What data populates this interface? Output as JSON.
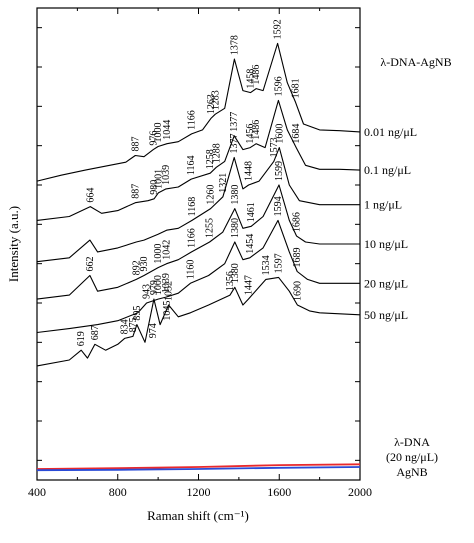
{
  "chart_data": {
    "type": "line",
    "xlabel": "Raman shift (cm⁻¹)",
    "ylabel": "Intensity (a.u.)",
    "xlim": [
      400,
      2000
    ],
    "x_ticks": [
      "400",
      "800",
      "1200",
      "1600",
      "2000"
    ],
    "y_tick_labels": false,
    "grid": false,
    "legend_title": "λ-DNA-AgNB",
    "series": [
      {
        "name": "0.01 ng/μL",
        "color": "#000000",
        "points": [
          [
            400,
            0.6
          ],
          [
            520,
            0.75
          ],
          [
            640,
            0.88
          ],
          [
            760,
            1.0
          ],
          [
            840,
            1.08
          ],
          [
            887,
            1.25
          ],
          [
            930,
            1.22
          ],
          [
            976,
            1.4
          ],
          [
            1000,
            1.48
          ],
          [
            1044,
            1.55
          ],
          [
            1100,
            1.6
          ],
          [
            1166,
            1.8
          ],
          [
            1220,
            1.9
          ],
          [
            1263,
            2.2
          ],
          [
            1283,
            2.3
          ],
          [
            1330,
            2.45
          ],
          [
            1378,
            3.7
          ],
          [
            1420,
            2.9
          ],
          [
            1458,
            2.85
          ],
          [
            1486,
            2.95
          ],
          [
            1520,
            2.9
          ],
          [
            1592,
            4.1
          ],
          [
            1640,
            3.1
          ],
          [
            1681,
            2.6
          ],
          [
            1720,
            2.05
          ],
          [
            1800,
            1.9
          ],
          [
            1900,
            1.88
          ],
          [
            2000,
            1.85
          ]
        ],
        "peaks": [
          "887",
          "976",
          "1000",
          "1044",
          "1166",
          "1263",
          "1283",
          "1378",
          "1458",
          "1486",
          "1592",
          "1681"
        ]
      },
      {
        "name": "0.1 ng/μL",
        "color": "#000000",
        "points": [
          [
            400,
            -0.4
          ],
          [
            560,
            -0.3
          ],
          [
            664,
            -0.05
          ],
          [
            720,
            -0.22
          ],
          [
            800,
            -0.15
          ],
          [
            887,
            0.05
          ],
          [
            950,
            0.1
          ],
          [
            980,
            0.15
          ],
          [
            1001,
            0.3
          ],
          [
            1039,
            0.4
          ],
          [
            1100,
            0.45
          ],
          [
            1164,
            0.65
          ],
          [
            1258,
            0.8
          ],
          [
            1288,
            0.95
          ],
          [
            1330,
            1.1
          ],
          [
            1377,
            1.75
          ],
          [
            1420,
            1.4
          ],
          [
            1456,
            1.45
          ],
          [
            1486,
            1.55
          ],
          [
            1530,
            1.45
          ],
          [
            1596,
            2.65
          ],
          [
            1640,
            1.9
          ],
          [
            1684,
            1.45
          ],
          [
            1730,
            1.0
          ],
          [
            1800,
            0.9
          ],
          [
            1900,
            0.9
          ],
          [
            2000,
            0.88
          ]
        ],
        "peaks": [
          "664",
          "887",
          "980",
          "1001",
          "1039",
          "1164",
          "1258",
          "1288",
          "1377",
          "1456",
          "1486",
          "1596",
          "1684"
        ]
      },
      {
        "name": "1 ng/μL",
        "color": "#000000",
        "points": [
          [
            400,
            -1.45
          ],
          [
            560,
            -1.35
          ],
          [
            662,
            -0.9
          ],
          [
            700,
            -1.2
          ],
          [
            800,
            -1.1
          ],
          [
            892,
            -0.95
          ],
          [
            930,
            -0.9
          ],
          [
            1000,
            -0.75
          ],
          [
            1042,
            -0.65
          ],
          [
            1100,
            -0.6
          ],
          [
            1168,
            -0.4
          ],
          [
            1260,
            -0.1
          ],
          [
            1321,
            0.2
          ],
          [
            1377,
            1.2
          ],
          [
            1420,
            0.4
          ],
          [
            1448,
            0.5
          ],
          [
            1500,
            0.6
          ],
          [
            1573,
            1.1
          ],
          [
            1600,
            1.45
          ],
          [
            1650,
            0.5
          ],
          [
            1700,
            0.1
          ],
          [
            1800,
            0.0
          ],
          [
            1900,
            0.0
          ],
          [
            2000,
            0.0
          ]
        ],
        "peaks": [
          "1168",
          "1260",
          "1321",
          "1377",
          "1448",
          "1573",
          "1600"
        ]
      },
      {
        "name": "10 ng/μL",
        "color": "#000000",
        "points": [
          [
            400,
            -2.4
          ],
          [
            560,
            -2.3
          ],
          [
            662,
            -1.8
          ],
          [
            700,
            -2.2
          ],
          [
            800,
            -2.1
          ],
          [
            892,
            -1.9
          ],
          [
            930,
            -1.8
          ],
          [
            1000,
            -1.6
          ],
          [
            1042,
            -1.5
          ],
          [
            1100,
            -1.4
          ],
          [
            1166,
            -1.2
          ],
          [
            1255,
            -0.95
          ],
          [
            1320,
            -0.7
          ],
          [
            1380,
            -0.1
          ],
          [
            1420,
            -0.6
          ],
          [
            1461,
            -0.55
          ],
          [
            1520,
            -0.3
          ],
          [
            1599,
            0.5
          ],
          [
            1650,
            -0.4
          ],
          [
            1686,
            -0.8
          ],
          [
            1730,
            -0.95
          ],
          [
            1800,
            -1.0
          ],
          [
            2000,
            -1.0
          ]
        ],
        "peaks": [
          "662",
          "892",
          "930",
          "1000",
          "1042",
          "1166",
          "1255",
          "1380",
          "1461",
          "1599",
          "1686"
        ]
      },
      {
        "name": "20 ng/μL",
        "color": "#000000",
        "points": [
          [
            400,
            -3.25
          ],
          [
            560,
            -3.15
          ],
          [
            700,
            -3.05
          ],
          [
            800,
            -2.95
          ],
          [
            900,
            -2.75
          ],
          [
            943,
            -2.5
          ],
          [
            1000,
            -2.4
          ],
          [
            1039,
            -2.35
          ],
          [
            1100,
            -2.25
          ],
          [
            1160,
            -2.0
          ],
          [
            1250,
            -1.8
          ],
          [
            1330,
            -1.5
          ],
          [
            1380,
            -0.95
          ],
          [
            1420,
            -1.4
          ],
          [
            1454,
            -1.35
          ],
          [
            1520,
            -1.1
          ],
          [
            1594,
            -0.4
          ],
          [
            1650,
            -1.2
          ],
          [
            1689,
            -1.7
          ],
          [
            1740,
            -1.9
          ],
          [
            1800,
            -2.0
          ],
          [
            2000,
            -2.0
          ]
        ],
        "peaks": [
          "943",
          "1000",
          "1039",
          "1160",
          "1380",
          "1454",
          "1594",
          "1689"
        ]
      },
      {
        "name": "50 ng/μL",
        "color": "#000000",
        "points": [
          [
            400,
            -4.1
          ],
          [
            560,
            -3.95
          ],
          [
            619,
            -3.7
          ],
          [
            650,
            -3.9
          ],
          [
            687,
            -3.55
          ],
          [
            740,
            -3.7
          ],
          [
            800,
            -3.55
          ],
          [
            834,
            -3.4
          ],
          [
            875,
            -3.35
          ],
          [
            895,
            -3.05
          ],
          [
            935,
            -3.5
          ],
          [
            979,
            -2.4
          ],
          [
            1010,
            -3.05
          ],
          [
            1052,
            -2.55
          ],
          [
            1100,
            -2.85
          ],
          [
            1160,
            -2.75
          ],
          [
            1250,
            -2.55
          ],
          [
            1356,
            -2.3
          ],
          [
            1380,
            -2.1
          ],
          [
            1420,
            -2.55
          ],
          [
            1447,
            -2.4
          ],
          [
            1534,
            -1.9
          ],
          [
            1597,
            -1.85
          ],
          [
            1650,
            -2.2
          ],
          [
            1690,
            -2.55
          ],
          [
            1750,
            -2.7
          ],
          [
            1800,
            -2.75
          ],
          [
            2000,
            -2.8
          ]
        ],
        "peaks": [
          "619",
          "687",
          "834",
          "875",
          "895",
          "979",
          "1052",
          "1160",
          "1356",
          "1380",
          "1447",
          "1534",
          "1597",
          "1690"
        ]
      },
      {
        "name": "λ-DNA (20 ng/μL)",
        "color": "#e8292d",
        "points": [
          [
            400,
            -6.72
          ],
          [
            800,
            -6.7
          ],
          [
            1200,
            -6.67
          ],
          [
            1600,
            -6.62
          ],
          [
            2000,
            -6.6
          ]
        ]
      },
      {
        "name": "AgNB",
        "color": "#2a4bd7",
        "points": [
          [
            400,
            -6.75
          ],
          [
            800,
            -6.74
          ],
          [
            1200,
            -6.72
          ],
          [
            1600,
            -6.69
          ],
          [
            2000,
            -6.67
          ]
        ]
      }
    ],
    "peak_labels": [
      {
        "text": "1378",
        "x": 1378,
        "y": 3.7
      },
      {
        "text": "1592",
        "x": 1592,
        "y": 4.1
      },
      {
        "text": "1458",
        "x": 1458,
        "y": 2.85
      },
      {
        "text": "1486",
        "x": 1486,
        "y": 2.95
      },
      {
        "text": "1681",
        "x": 1681,
        "y": 2.6
      },
      {
        "text": "1263",
        "x": 1263,
        "y": 2.2
      },
      {
        "text": "1283",
        "x": 1283,
        "y": 2.3
      },
      {
        "text": "1166",
        "x": 1166,
        "y": 1.8
      },
      {
        "text": "887",
        "x": 887,
        "y": 1.25
      },
      {
        "text": "976",
        "x": 976,
        "y": 1.4
      },
      {
        "text": "1000",
        "x": 1000,
        "y": 1.48
      },
      {
        "text": "1044",
        "x": 1044,
        "y": 1.55
      },
      {
        "text": "1377",
        "x": 1377,
        "y": 1.75
      },
      {
        "text": "1596",
        "x": 1596,
        "y": 2.65
      },
      {
        "text": "1456",
        "x": 1456,
        "y": 1.45
      },
      {
        "text": "1486",
        "x": 1486,
        "y": 1.55
      },
      {
        "text": "1684",
        "x": 1684,
        "y": 1.45
      },
      {
        "text": "1164",
        "x": 1164,
        "y": 0.65
      },
      {
        "text": "1258",
        "x": 1258,
        "y": 0.8
      },
      {
        "text": "1288",
        "x": 1288,
        "y": 0.95
      },
      {
        "text": "664",
        "x": 664,
        "y": -0.05
      },
      {
        "text": "887",
        "x": 887,
        "y": 0.05
      },
      {
        "text": "980",
        "x": 980,
        "y": 0.15
      },
      {
        "text": "1001",
        "x": 1001,
        "y": 0.3
      },
      {
        "text": "1039",
        "x": 1039,
        "y": 0.4
      },
      {
        "text": "1321",
        "x": 1321,
        "y": 0.2
      },
      {
        "text": "1377",
        "x": 1377,
        "y": 1.2
      },
      {
        "text": "1573",
        "x": 1573,
        "y": 1.1
      },
      {
        "text": "1600",
        "x": 1600,
        "y": 1.45
      },
      {
        "text": "1448",
        "x": 1448,
        "y": 0.5
      },
      {
        "text": "1260",
        "x": 1260,
        "y": -0.1
      },
      {
        "text": "1168",
        "x": 1168,
        "y": -0.4
      },
      {
        "text": "1380",
        "x": 1380,
        "y": -0.1
      },
      {
        "text": "1599",
        "x": 1599,
        "y": 0.5
      },
      {
        "text": "1461",
        "x": 1461,
        "y": -0.55
      },
      {
        "text": "1686",
        "x": 1686,
        "y": -0.8
      },
      {
        "text": "662",
        "x": 662,
        "y": -1.8
      },
      {
        "text": "892",
        "x": 892,
        "y": -1.9
      },
      {
        "text": "930",
        "x": 930,
        "y": -1.8
      },
      {
        "text": "1000",
        "x": 1000,
        "y": -1.6
      },
      {
        "text": "1042",
        "x": 1042,
        "y": -1.5
      },
      {
        "text": "1166",
        "x": 1166,
        "y": -1.2
      },
      {
        "text": "1255",
        "x": 1255,
        "y": -0.95
      },
      {
        "text": "943",
        "x": 943,
        "y": -2.5
      },
      {
        "text": "1000",
        "x": 1000,
        "y": -2.4
      },
      {
        "text": "1039",
        "x": 1039,
        "y": -2.35
      },
      {
        "text": "1160",
        "x": 1160,
        "y": -2.0
      },
      {
        "text": "1380",
        "x": 1380,
        "y": -0.95
      },
      {
        "text": "1454",
        "x": 1454,
        "y": -1.35
      },
      {
        "text": "1594",
        "x": 1594,
        "y": -0.4
      },
      {
        "text": "1689",
        "x": 1689,
        "y": -1.7
      },
      {
        "text": "619",
        "x": 619,
        "y": -3.7
      },
      {
        "text": "687",
        "x": 687,
        "y": -3.55
      },
      {
        "text": "895",
        "x": 895,
        "y": -3.05
      },
      {
        "text": "979",
        "x": 979,
        "y": -2.4
      },
      {
        "text": "1052",
        "x": 1052,
        "y": -2.55
      },
      {
        "text": "1356",
        "x": 1356,
        "y": -2.3
      },
      {
        "text": "1380",
        "x": 1380,
        "y": -2.1
      },
      {
        "text": "1447",
        "x": 1447,
        "y": -2.4
      },
      {
        "text": "1534",
        "x": 1534,
        "y": -1.9
      },
      {
        "text": "1597",
        "x": 1597,
        "y": -1.85
      },
      {
        "text": "1690",
        "x": 1690,
        "y": -2.55
      },
      {
        "text": "875",
        "x": 875,
        "y": -3.35
      },
      {
        "text": "834",
        "x": 834,
        "y": -3.4
      },
      {
        "text": "974",
        "x": 974,
        "y": -3.5
      },
      {
        "text": "1045",
        "x": 1045,
        "y": -3.05
      }
    ]
  }
}
